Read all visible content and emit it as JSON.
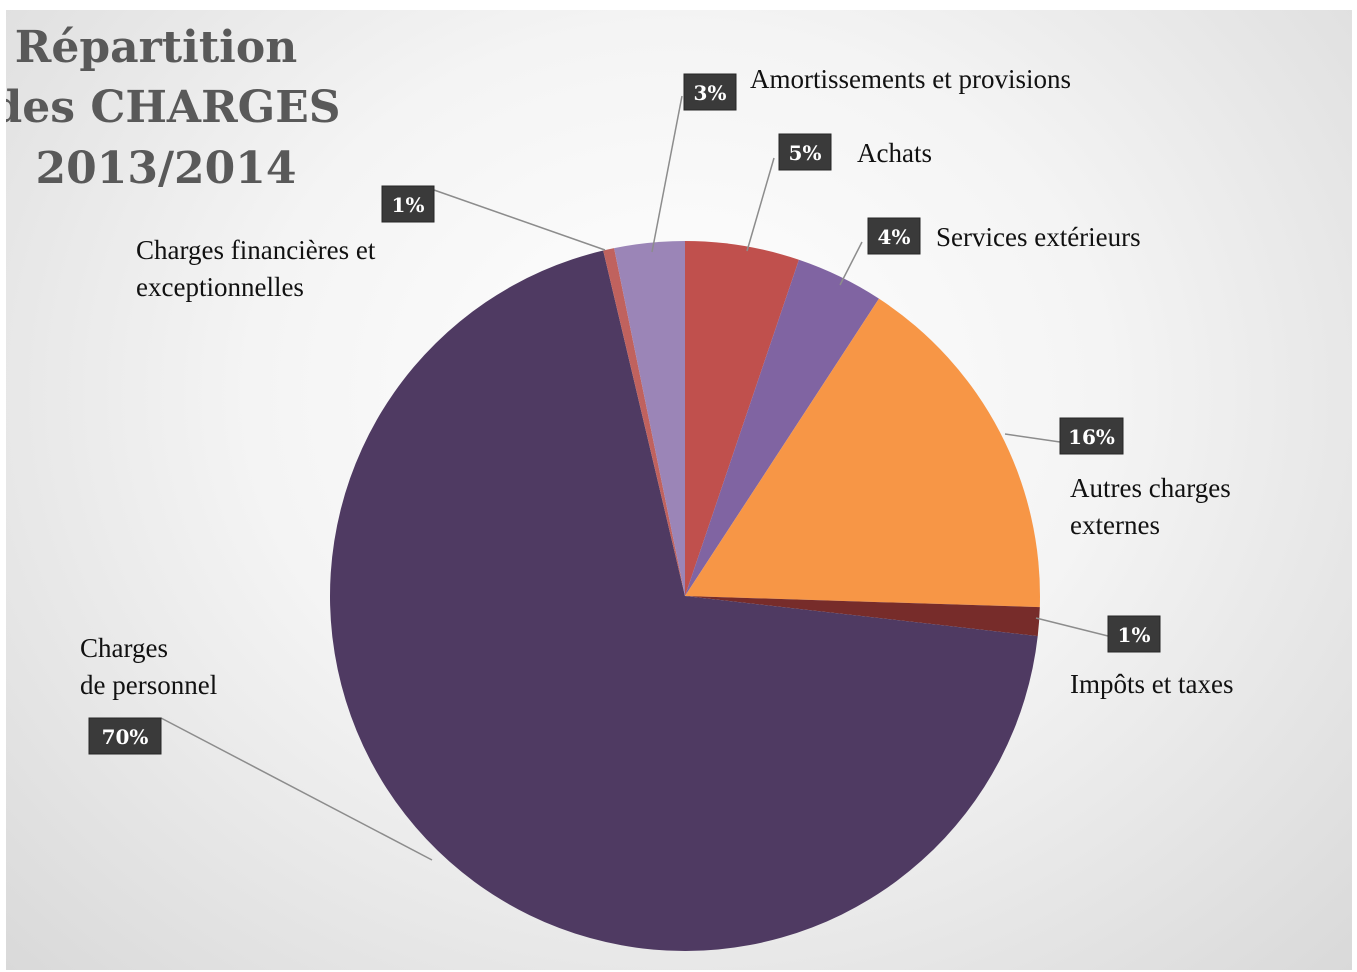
{
  "chart_data": {
    "type": "pie",
    "title_lines": [
      "Répartition",
      "des CHARGES",
      "2013/2014"
    ],
    "slices": [
      {
        "label_lines": [
          "Achats"
        ],
        "pct_label": "5%",
        "value": 5.2,
        "color": "#C0504D"
      },
      {
        "label_lines": [
          "Services extérieurs"
        ],
        "pct_label": "4%",
        "value": 4.0,
        "color": "#8064A2"
      },
      {
        "label_lines": [
          "Autres charges",
          "externes"
        ],
        "pct_label": "16%",
        "value": 16.3,
        "color": "#F79646"
      },
      {
        "label_lines": [
          "Impôts et taxes"
        ],
        "pct_label": "1%",
        "value": 1.3,
        "color": "#772C2A"
      },
      {
        "label_lines": [
          "Charges",
          "de personnel"
        ],
        "pct_label": "70%",
        "value": 69.5,
        "color": "#4F3A62"
      },
      {
        "label_lines": [
          "Charges financières et",
          "exceptionnelles"
        ],
        "pct_label": "1%",
        "value": 0.5,
        "color": "#C0625E"
      },
      {
        "label_lines": [
          "Amortissements et provisions"
        ],
        "pct_label": "3%",
        "value": 3.2,
        "color": "#9B85B7"
      }
    ]
  }
}
